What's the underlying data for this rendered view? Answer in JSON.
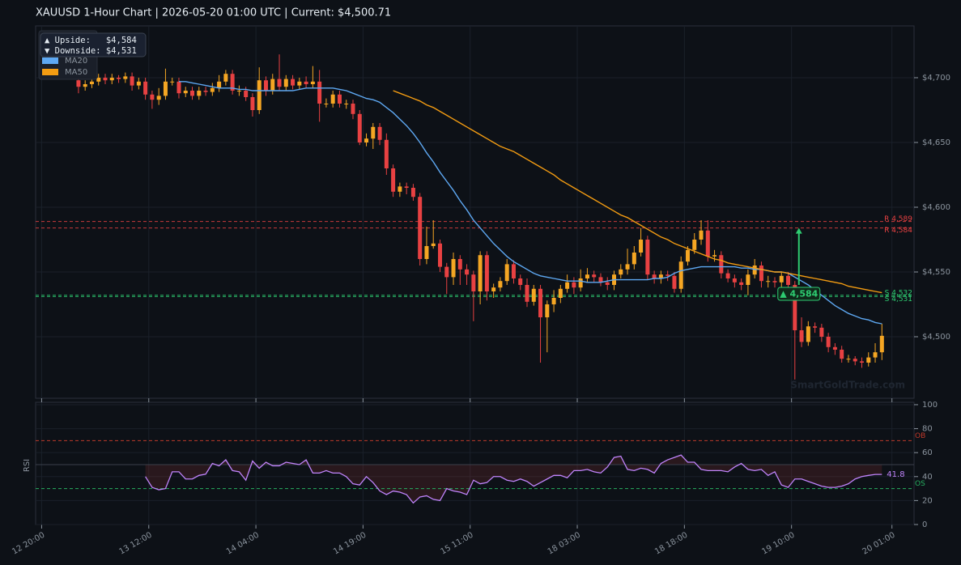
{
  "chart_data": [
    {
      "type": "candlestick",
      "title": "XAUUSD  1-Hour Chart  |  2026-05-20 01:00 UTC  |  Current: $4,500.71",
      "up_color": "#f5a623",
      "down_color": "#e84142",
      "open": [
        4698,
        4693,
        4695,
        4697,
        4700,
        4698,
        4700,
        4699,
        4701,
        4694,
        4697,
        4687,
        4683,
        4686,
        4697,
        4697,
        4688,
        4690,
        4686,
        4690,
        4689,
        4692,
        4697,
        4703,
        4690,
        4690,
        4685,
        4675,
        4698,
        4690,
        4699,
        4693,
        4699,
        4694,
        4697,
        4695,
        4697,
        4680,
        4680,
        4687,
        4680,
        4680,
        4672,
        4650,
        4653,
        4662,
        4652,
        4630,
        4612,
        4616,
        4615,
        4608,
        4560,
        4570,
        4572,
        4554,
        4546,
        4560,
        4552,
        4548,
        4535,
        4563,
        4535,
        4538,
        4543,
        4556,
        4545,
        4540,
        4527,
        4537,
        4515,
        4525,
        4530,
        4537,
        4542,
        4538,
        4545,
        4548,
        4546,
        4542,
        4540,
        4548,
        4552,
        4556,
        4565,
        4575,
        4548,
        4545,
        4548,
        4547,
        4537,
        4558,
        4567,
        4575,
        4582,
        4562,
        4563,
        4549,
        4545,
        4542,
        4540,
        4548,
        4555,
        4543,
        4543,
        4542,
        4547,
        4540,
        4505,
        4496,
        4508,
        4507,
        4500,
        4492,
        4490,
        4483,
        4483,
        4481,
        4480,
        4484,
        4488
      ],
      "high": [
        4701,
        4698,
        4700,
        4703,
        4703,
        4703,
        4702,
        4704,
        4704,
        4700,
        4700,
        4690,
        4692,
        4707,
        4700,
        4700,
        4693,
        4693,
        4693,
        4693,
        4696,
        4702,
        4706,
        4706,
        4694,
        4693,
        4688,
        4708,
        4701,
        4703,
        4718,
        4702,
        4702,
        4700,
        4701,
        4709,
        4706,
        4684,
        4690,
        4690,
        4683,
        4683,
        4675,
        4657,
        4665,
        4665,
        4657,
        4633,
        4619,
        4619,
        4618,
        4611,
        4585,
        4590,
        4575,
        4557,
        4565,
        4563,
        4556,
        4551,
        4566,
        4566,
        4541,
        4546,
        4560,
        4559,
        4548,
        4545,
        4540,
        4540,
        4528,
        4536,
        4540,
        4548,
        4546,
        4552,
        4553,
        4551,
        4549,
        4546,
        4551,
        4556,
        4568,
        4570,
        4584,
        4578,
        4551,
        4551,
        4551,
        4550,
        4562,
        4570,
        4580,
        4590,
        4590,
        4567,
        4566,
        4552,
        4548,
        4545,
        4552,
        4560,
        4558,
        4547,
        4546,
        4550,
        4550,
        4543,
        4515,
        4512,
        4511,
        4510,
        4503,
        4495,
        4493,
        4486,
        4485,
        4484,
        4488,
        4495,
        4510
      ],
      "low": [
        4688,
        4690,
        4692,
        4694,
        4695,
        4695,
        4696,
        4696,
        4690,
        4691,
        4683,
        4676,
        4679,
        4683,
        4694,
        4684,
        4685,
        4683,
        4683,
        4686,
        4686,
        4689,
        4694,
        4687,
        4686,
        4682,
        4670,
        4672,
        4686,
        4687,
        4690,
        4690,
        4691,
        4691,
        4692,
        4692,
        4666,
        4677,
        4677,
        4677,
        4676,
        4668,
        4648,
        4647,
        4645,
        4648,
        4625,
        4608,
        4608,
        4610,
        4605,
        4555,
        4556,
        4568,
        4550,
        4533,
        4540,
        4540,
        4540,
        4512,
        4525,
        4528,
        4530,
        4535,
        4540,
        4541,
        4536,
        4523,
        4524,
        4480,
        4488,
        4519,
        4526,
        4534,
        4533,
        4535,
        4542,
        4542,
        4539,
        4536,
        4536,
        4545,
        4548,
        4552,
        4562,
        4544,
        4541,
        4541,
        4543,
        4534,
        4534,
        4555,
        4564,
        4571,
        4558,
        4558,
        4545,
        4542,
        4538,
        4536,
        4532,
        4545,
        4538,
        4538,
        4538,
        4538,
        4535,
        4467,
        4492,
        4493,
        4503,
        4496,
        4488,
        4486,
        4480,
        4480,
        4478,
        4476,
        4477,
        4480,
        4482
      ],
      "close": [
        4693,
        4695,
        4697,
        4700,
        4698,
        4700,
        4699,
        4701,
        4694,
        4697,
        4687,
        4683,
        4686,
        4697,
        4697,
        4688,
        4690,
        4686,
        4690,
        4689,
        4692,
        4697,
        4703,
        4690,
        4690,
        4685,
        4675,
        4698,
        4690,
        4699,
        4693,
        4699,
        4694,
        4697,
        4695,
        4697,
        4680,
        4680,
        4687,
        4680,
        4680,
        4672,
        4650,
        4653,
        4662,
        4652,
        4630,
        4612,
        4616,
        4615,
        4608,
        4560,
        4570,
        4572,
        4554,
        4546,
        4560,
        4552,
        4548,
        4535,
        4563,
        4535,
        4538,
        4543,
        4556,
        4545,
        4540,
        4527,
        4537,
        4515,
        4525,
        4530,
        4537,
        4542,
        4538,
        4545,
        4548,
        4546,
        4542,
        4540,
        4548,
        4552,
        4556,
        4565,
        4575,
        4548,
        4545,
        4548,
        4547,
        4537,
        4558,
        4567,
        4575,
        4582,
        4562,
        4563,
        4549,
        4545,
        4542,
        4540,
        4548,
        4555,
        4543,
        4543,
        4542,
        4547,
        4540,
        4505,
        4496,
        4508,
        4507,
        4500,
        4492,
        4490,
        4483,
        4483,
        4481,
        4480,
        4484,
        4488,
        4500.71
      ],
      "series": [
        {
          "name": "MA20",
          "color": "#5ea8f2",
          "values": [
            null,
            null,
            null,
            null,
            null,
            null,
            null,
            null,
            null,
            null,
            null,
            null,
            null,
            null,
            null,
            4697,
            4697,
            4696,
            4695,
            4694,
            4693,
            4692,
            4692,
            4692,
            4691,
            4691,
            4690,
            4690,
            4690,
            4690,
            4690,
            4690,
            4690,
            4691,
            4692,
            4692,
            4692,
            4692,
            4692,
            4691,
            4690,
            4688,
            4686,
            4684,
            4683,
            4681,
            4677,
            4673,
            4668,
            4663,
            4657,
            4650,
            4642,
            4635,
            4627,
            4620,
            4613,
            4605,
            4598,
            4590,
            4584,
            4578,
            4572,
            4567,
            4562,
            4558,
            4555,
            4552,
            4549,
            4547,
            4546,
            4545,
            4544,
            4543,
            4543,
            4543,
            4542,
            4542,
            4542,
            4543,
            4544,
            4544,
            4544,
            4544,
            4544,
            4544,
            4545,
            4545,
            4546,
            4549,
            4551,
            4552,
            4553,
            4554,
            4554,
            4554,
            4554,
            4554,
            4554,
            4553,
            4553,
            4552,
            4552,
            4551,
            4550,
            4550,
            4549,
            4546,
            4543,
            4540,
            4536,
            4532,
            4528,
            4524,
            4521,
            4518,
            4516,
            4514,
            4513,
            4511,
            4510
          ]
        },
        {
          "name": "MA50",
          "color": "#f39c12",
          "values": [
            null,
            null,
            null,
            null,
            null,
            null,
            null,
            null,
            null,
            null,
            null,
            null,
            null,
            null,
            null,
            null,
            null,
            null,
            null,
            null,
            null,
            null,
            null,
            null,
            null,
            null,
            null,
            null,
            null,
            null,
            null,
            null,
            null,
            null,
            null,
            null,
            null,
            null,
            null,
            null,
            null,
            null,
            null,
            null,
            null,
            null,
            null,
            4690,
            4688,
            4686,
            4684,
            4682,
            4679,
            4677,
            4674,
            4671,
            4668,
            4665,
            4662,
            4659,
            4656,
            4653,
            4650,
            4647,
            4645,
            4643,
            4640,
            4637,
            4634,
            4631,
            4628,
            4625,
            4621,
            4618,
            4615,
            4612,
            4609,
            4606,
            4603,
            4600,
            4597,
            4594,
            4592,
            4589,
            4586,
            4583,
            4580,
            4577,
            4575,
            4572,
            4570,
            4568,
            4566,
            4564,
            4562,
            4560,
            4559,
            4557,
            4556,
            4555,
            4554,
            4553,
            4552,
            4551,
            4550,
            4550,
            4549,
            4548,
            4547,
            4546,
            4545,
            4544,
            4543,
            4542,
            4541,
            4539,
            4538,
            4537,
            4536,
            4535,
            4534
          ]
        }
      ],
      "ylim": [
        4452.5,
        4740
      ],
      "yticks": [
        {
          "value": 4500,
          "label": "$4,500"
        },
        {
          "value": 4550,
          "label": "$4,550"
        },
        {
          "value": 4600,
          "label": "$4,600"
        },
        {
          "value": 4650,
          "label": "$4,650"
        },
        {
          "value": 4700,
          "label": "$4,700"
        }
      ],
      "grid": true,
      "levels": [
        {
          "label": "R 4,589",
          "value": 4589,
          "color": "#e84142"
        },
        {
          "label": "R 4,584",
          "value": 4584,
          "color": "#e84142"
        },
        {
          "label": "S 4,532",
          "value": 4532,
          "color": "#2ecc71"
        },
        {
          "label": "S 4,531",
          "value": 4531,
          "color": "#2ecc71"
        }
      ],
      "annotation": {
        "label": "▲ 4,584",
        "x": 107.6,
        "from": 4540,
        "to": 4584,
        "color": "#2ecc71"
      },
      "info": [
        "▲ Upside:   $4,584",
        "▼ Downside: $4,531"
      ],
      "watermark": "SmartGoldTrade.com"
    },
    {
      "type": "line",
      "ylabel": "RSI",
      "series": [
        {
          "color": "#c084fc",
          "values": [
            null,
            null,
            null,
            null,
            null,
            null,
            null,
            null,
            null,
            null,
            40,
            31,
            29,
            30,
            44,
            44,
            38,
            38,
            41,
            42,
            51,
            49,
            54,
            45,
            44,
            37,
            53,
            47,
            52,
            49,
            49,
            52,
            51,
            50,
            54,
            43,
            43,
            45,
            43,
            43,
            40,
            34,
            33,
            40,
            35,
            28,
            25,
            28,
            27,
            25,
            18,
            23,
            24,
            21,
            20,
            30,
            28,
            27,
            25,
            37,
            34,
            35,
            40,
            40,
            37,
            36,
            38,
            36,
            32,
            35,
            38,
            41,
            41,
            39,
            45,
            45,
            46,
            44,
            43,
            48,
            56,
            57,
            46,
            45,
            47,
            46,
            43,
            51,
            54,
            56,
            58,
            52,
            52,
            46,
            45,
            45,
            45,
            44,
            48,
            51,
            46,
            45,
            46,
            41,
            44,
            33,
            31,
            38,
            38,
            36,
            34,
            32,
            31,
            31,
            32,
            34,
            38,
            40,
            41,
            41.8,
            41.8
          ]
        }
      ],
      "end_label": "41.8",
      "midline": 50,
      "overbought": {
        "value": 70,
        "label": "OB",
        "color": "#c0392b"
      },
      "oversold": {
        "value": 30,
        "label": "OS",
        "color": "#27ae60"
      },
      "ylim": [
        0,
        102
      ],
      "yticks": [
        0,
        20,
        40,
        60,
        80,
        100
      ],
      "xlim": [
        -6.4,
        124.8
      ],
      "xticks": [
        {
          "value": -5.5,
          "label": "12 20:00"
        },
        {
          "value": 10.5,
          "label": "13 12:00"
        },
        {
          "value": 26.5,
          "label": "14 04:00"
        },
        {
          "value": 42.5,
          "label": "14 19:00"
        },
        {
          "value": 58.5,
          "label": "15 11:00"
        },
        {
          "value": 74.5,
          "label": "18 03:00"
        },
        {
          "value": 90.5,
          "label": "18 18:00"
        },
        {
          "value": 106.5,
          "label": "19 10:00"
        },
        {
          "value": 121.5,
          "label": "20 01:00"
        }
      ]
    }
  ]
}
